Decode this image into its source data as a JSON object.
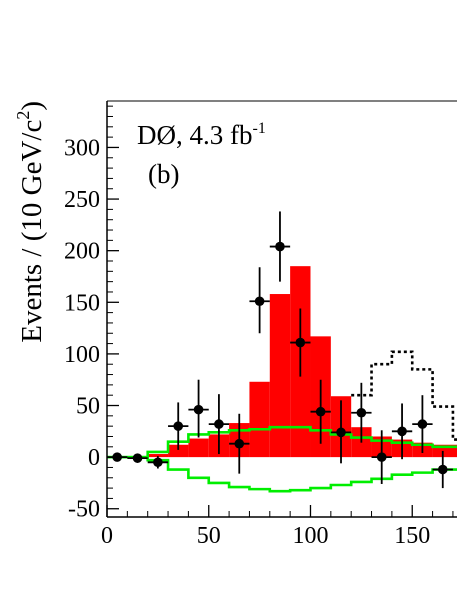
{
  "chart_data": {
    "type": "histogram",
    "title": "",
    "annotation_main": "DØ, 4.3 fb",
    "annotation_superscript": "-1",
    "panel_label": "(b)",
    "ylabel_main": "Events / (10 GeV/c",
    "ylabel_superscript": "2",
    "ylabel_close": ")",
    "xlim": [
      0,
      172
    ],
    "ylim": [
      -58,
      345
    ],
    "x_ticks": [
      0,
      50,
      100,
      150
    ],
    "y_ticks": [
      -50,
      0,
      50,
      100,
      150,
      200,
      250,
      300
    ],
    "bin_width": 10,
    "series": [
      {
        "style": "filled-histogram",
        "color": "#ff0000",
        "bin_edges": [
          0,
          10,
          20,
          30,
          40,
          50,
          60,
          70,
          80,
          90,
          100,
          110,
          120,
          130,
          140,
          150,
          160,
          172
        ],
        "values": [
          0,
          0,
          3,
          12,
          18,
          22,
          33,
          73,
          158,
          185,
          117,
          59,
          29,
          20,
          17,
          14,
          12
        ]
      },
      {
        "style": "step-line",
        "color": "#00ee00",
        "bin_edges": [
          0,
          10,
          20,
          30,
          40,
          50,
          60,
          70,
          80,
          90,
          100,
          110,
          120,
          130,
          140,
          150,
          160,
          172
        ],
        "values": [
          0,
          0,
          5,
          15,
          22,
          24,
          26,
          27,
          29,
          29,
          26,
          22,
          19,
          16,
          14,
          12,
          10
        ]
      },
      {
        "style": "step-line",
        "color": "#00ee00",
        "bin_edges": [
          0,
          10,
          20,
          30,
          40,
          50,
          60,
          70,
          80,
          90,
          100,
          110,
          120,
          130,
          140,
          150,
          160,
          172
        ],
        "values": [
          0,
          0,
          -3,
          -12,
          -20,
          -25,
          -29,
          -31,
          -33,
          -32,
          -30,
          -27,
          -24,
          -21,
          -17,
          -15,
          -12
        ]
      },
      {
        "style": "dotted-step-line",
        "color": "#000000",
        "bin_edges": [
          120,
          130,
          140,
          150,
          160,
          170,
          172
        ],
        "values": [
          60,
          90,
          102,
          85,
          49,
          17
        ]
      },
      {
        "style": "data-points",
        "color": "#000000",
        "x": [
          5,
          15,
          25,
          35,
          45,
          55,
          65,
          75,
          85,
          95,
          105,
          115,
          125,
          135,
          145,
          155,
          165
        ],
        "y": [
          0,
          -1,
          -5,
          30,
          46,
          32,
          13,
          151,
          204,
          111,
          44,
          24,
          43,
          0,
          25,
          32,
          -12
        ],
        "yerr_low": [
          0,
          0,
          6,
          23,
          27,
          29,
          29,
          31,
          34,
          33,
          31,
          30,
          29,
          26,
          27,
          28,
          18
        ],
        "yerr_high": [
          0,
          0,
          6,
          23,
          29,
          29,
          29,
          33,
          34,
          33,
          31,
          31,
          29,
          26,
          27,
          28,
          18
        ]
      }
    ]
  }
}
